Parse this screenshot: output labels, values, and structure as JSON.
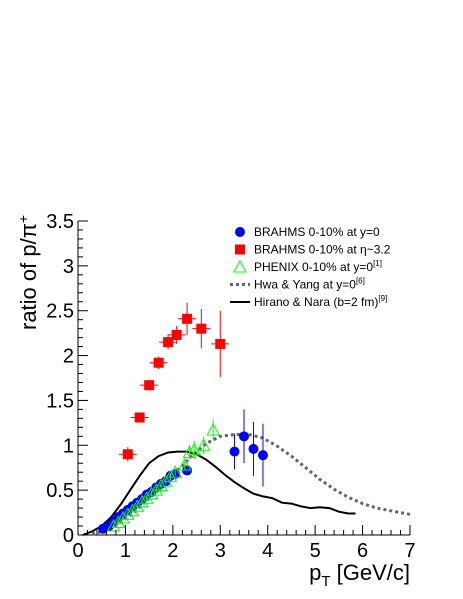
{
  "chart_data": {
    "type": "scatter",
    "xlabel": "p",
    "xlabel_sub": "T",
    "xlabel_unit": " [GeV/c]",
    "ylabel": "ratio of p/π",
    "ylabel_sup": "+",
    "xlim": [
      0,
      7
    ],
    "ylim": [
      0,
      3.5
    ],
    "x_ticks": [
      "0",
      "1",
      "2",
      "3",
      "4",
      "5",
      "6",
      "7"
    ],
    "y_ticks": [
      "0",
      "0.5",
      "1",
      "1.5",
      "2",
      "2.5",
      "3",
      "3.5"
    ],
    "grid": false,
    "legend_position": "top-right",
    "series": [
      {
        "name": "BRAHMS 0-10% at y=0",
        "label_parts": [
          "BRAHMS 0-10% at y=0"
        ],
        "marker": "circle",
        "color": "#0000ff",
        "points": [
          {
            "x": 0.53,
            "y": 0.07,
            "yerr": 0.02
          },
          {
            "x": 0.65,
            "y": 0.1,
            "yerr": 0.02
          },
          {
            "x": 0.75,
            "y": 0.15,
            "yerr": 0.02
          },
          {
            "x": 0.85,
            "y": 0.2,
            "yerr": 0.02
          },
          {
            "x": 0.95,
            "y": 0.24,
            "yerr": 0.02
          },
          {
            "x": 1.05,
            "y": 0.28,
            "yerr": 0.02
          },
          {
            "x": 1.15,
            "y": 0.32,
            "yerr": 0.02
          },
          {
            "x": 1.25,
            "y": 0.36,
            "yerr": 0.02
          },
          {
            "x": 1.35,
            "y": 0.4,
            "yerr": 0.02
          },
          {
            "x": 1.45,
            "y": 0.45,
            "yerr": 0.02
          },
          {
            "x": 1.55,
            "y": 0.48,
            "yerr": 0.02
          },
          {
            "x": 1.65,
            "y": 0.53,
            "yerr": 0.02
          },
          {
            "x": 1.75,
            "y": 0.57,
            "yerr": 0.02
          },
          {
            "x": 1.85,
            "y": 0.6,
            "yerr": 0.03
          },
          {
            "x": 1.95,
            "y": 0.66,
            "yerr": 0.03
          },
          {
            "x": 2.05,
            "y": 0.68,
            "yerr": 0.03
          },
          {
            "x": 2.3,
            "y": 0.72,
            "yerr": 0.04
          },
          {
            "x": 3.3,
            "y": 0.93,
            "yerr": 0.2
          },
          {
            "x": 3.5,
            "y": 1.1,
            "yerr": 0.3
          },
          {
            "x": 3.7,
            "y": 0.96,
            "yerr": 0.3
          },
          {
            "x": 3.9,
            "y": 0.89,
            "yerr": 0.35
          }
        ]
      },
      {
        "name": "BRAHMS 0-10% at η~3.2",
        "label_parts": [
          "BRAHMS 0-10% at η~3.2"
        ],
        "marker": "square",
        "color": "#ff0000",
        "points": [
          {
            "x": 1.05,
            "y": 0.9,
            "yerr": 0.08
          },
          {
            "x": 1.3,
            "y": 1.31,
            "yerr": 0.05
          },
          {
            "x": 1.5,
            "y": 1.67,
            "yerr": 0.06
          },
          {
            "x": 1.7,
            "y": 1.92,
            "yerr": 0.07
          },
          {
            "x": 1.9,
            "y": 2.15,
            "yerr": 0.08
          },
          {
            "x": 2.08,
            "y": 2.23,
            "yerr": 0.1
          },
          {
            "x": 2.3,
            "y": 2.41,
            "yerr": 0.18
          },
          {
            "x": 2.6,
            "y": 2.3,
            "yerr": 0.22
          },
          {
            "x": 3.0,
            "y": 2.13,
            "yerr": 0.37
          }
        ]
      },
      {
        "name": "PHENIX 0-10% at y=0",
        "label_parts": [
          "PHENIX  0-10% at y=0",
          "[1]"
        ],
        "marker": "triangle-open",
        "color": "#00ff00",
        "points": [
          {
            "x": 0.75,
            "y": 0.1,
            "yerr": 0.02
          },
          {
            "x": 0.85,
            "y": 0.14,
            "yerr": 0.02
          },
          {
            "x": 0.95,
            "y": 0.19,
            "yerr": 0.02
          },
          {
            "x": 1.05,
            "y": 0.23,
            "yerr": 0.02
          },
          {
            "x": 1.15,
            "y": 0.27,
            "yerr": 0.02
          },
          {
            "x": 1.25,
            "y": 0.32,
            "yerr": 0.02
          },
          {
            "x": 1.35,
            "y": 0.37,
            "yerr": 0.02
          },
          {
            "x": 1.45,
            "y": 0.41,
            "yerr": 0.03
          },
          {
            "x": 1.55,
            "y": 0.46,
            "yerr": 0.03
          },
          {
            "x": 1.65,
            "y": 0.5,
            "yerr": 0.03
          },
          {
            "x": 1.75,
            "y": 0.55,
            "yerr": 0.03
          },
          {
            "x": 1.85,
            "y": 0.6,
            "yerr": 0.03
          },
          {
            "x": 1.95,
            "y": 0.65,
            "yerr": 0.04
          },
          {
            "x": 2.05,
            "y": 0.7,
            "yerr": 0.04
          },
          {
            "x": 2.25,
            "y": 0.78,
            "yerr": 0.05
          },
          {
            "x": 2.35,
            "y": 0.92,
            "yerr": 0.08
          },
          {
            "x": 2.45,
            "y": 0.95,
            "yerr": 0.1
          },
          {
            "x": 2.65,
            "y": 1.0,
            "yerr": 0.1
          },
          {
            "x": 2.85,
            "y": 1.17,
            "yerr": 0.12
          }
        ]
      },
      {
        "name": "Hwa & Yang at y=0",
        "label_parts": [
          "Hwa & Yang at y=0",
          "[6]"
        ],
        "line_style": "dotted",
        "color": "#666666",
        "x": [
          0.3,
          0.6,
          0.9,
          1.2,
          1.5,
          1.8,
          2.1,
          2.4,
          2.7,
          3.0,
          3.3,
          3.6,
          3.9,
          4.2,
          4.5,
          4.8,
          5.1,
          5.4,
          5.7,
          6.0,
          6.3,
          6.6,
          7.0
        ],
        "y": [
          0.01,
          0.05,
          0.14,
          0.26,
          0.41,
          0.56,
          0.72,
          0.88,
          1.02,
          1.1,
          1.12,
          1.12,
          1.08,
          0.99,
          0.88,
          0.75,
          0.62,
          0.51,
          0.42,
          0.35,
          0.3,
          0.27,
          0.23
        ]
      },
      {
        "name": "Hirano & Nara (b=2 fm)",
        "label_parts": [
          "Hirano & Nara (b=2 fm)",
          "[9]"
        ],
        "line_style": "solid",
        "color": "#000000",
        "x": [
          0.1,
          0.3,
          0.5,
          0.7,
          0.9,
          1.1,
          1.3,
          1.5,
          1.7,
          1.9,
          2.1,
          2.3,
          2.5,
          2.7,
          2.9,
          3.1,
          3.3,
          3.5,
          3.7,
          3.9,
          4.1,
          4.3,
          4.5,
          4.7,
          4.9,
          5.1,
          5.3,
          5.5,
          5.7,
          5.85
        ],
        "y": [
          0.0,
          0.04,
          0.1,
          0.2,
          0.34,
          0.5,
          0.66,
          0.8,
          0.88,
          0.92,
          0.93,
          0.93,
          0.9,
          0.84,
          0.76,
          0.67,
          0.59,
          0.52,
          0.46,
          0.43,
          0.41,
          0.36,
          0.35,
          0.32,
          0.3,
          0.31,
          0.3,
          0.26,
          0.24,
          0.24
        ]
      }
    ]
  }
}
